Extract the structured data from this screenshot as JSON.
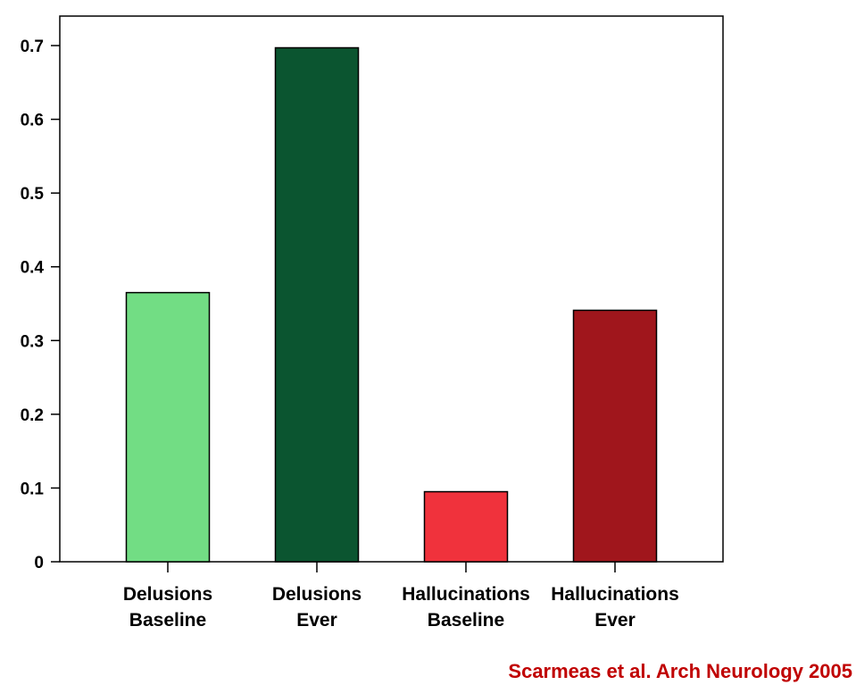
{
  "chart_data": {
    "type": "bar",
    "title": "",
    "xlabel": "",
    "ylabel": "",
    "ylim": [
      0,
      0.74
    ],
    "yticks": [
      "0",
      "0.1",
      "0.2",
      "0.3",
      "0.4",
      "0.5",
      "0.6",
      "0.7"
    ],
    "categories": [
      [
        "Delusions",
        "Baseline"
      ],
      [
        "Delusions",
        "Ever"
      ],
      [
        "Hallucinations",
        "Baseline"
      ],
      [
        "Hallucinations",
        "Ever"
      ]
    ],
    "values": [
      0.365,
      0.697,
      0.095,
      0.341
    ],
    "colors": [
      "#72dd84",
      "#0b5530",
      "#f0323c",
      "#a0161c"
    ],
    "grid": false,
    "legend": "none"
  },
  "citation": "Scarmeas et al. Arch Neurology 2005"
}
